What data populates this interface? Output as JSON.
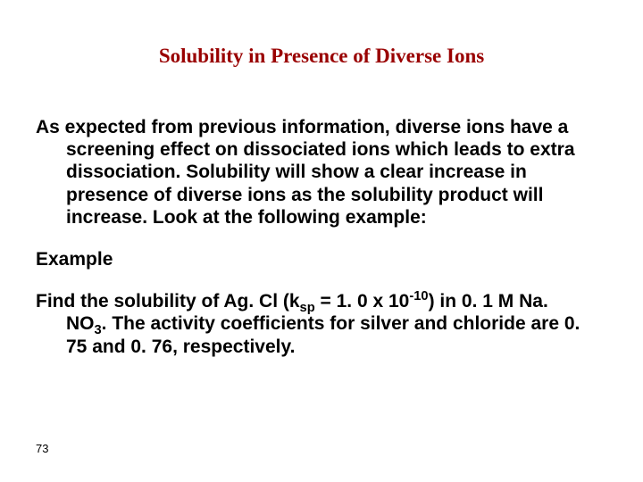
{
  "title": "Solubility in Presence of Diverse Ions",
  "para1": "As expected from previous information, diverse ions have a screening effect on dissociated ions which leads to extra dissociation. Solubility will show a clear increase in presence of diverse ions as the solubility product will increase. Look at the following example:",
  "example_label": "Example",
  "p2_a": "Find the solubility of Ag. Cl (k",
  "p2_sp": "sp",
  "p2_b": " = 1. 0 x 10",
  "p2_exp": "-10",
  "p2_c": ") in 0. 1 M Na. NO",
  "p2_sub3": "3",
  "p2_d": ". The activity coefficients for silver and chloride are 0. 75 and 0. 76, respectively.",
  "page_number": "73",
  "colors": {
    "title_color": "#990000",
    "text_color": "#000000",
    "background": "#ffffff"
  },
  "fonts": {
    "title_family": "Times New Roman",
    "body_family": "Arial",
    "title_size_pt": 17,
    "body_size_pt": 16,
    "pagenum_size_pt": 10
  }
}
